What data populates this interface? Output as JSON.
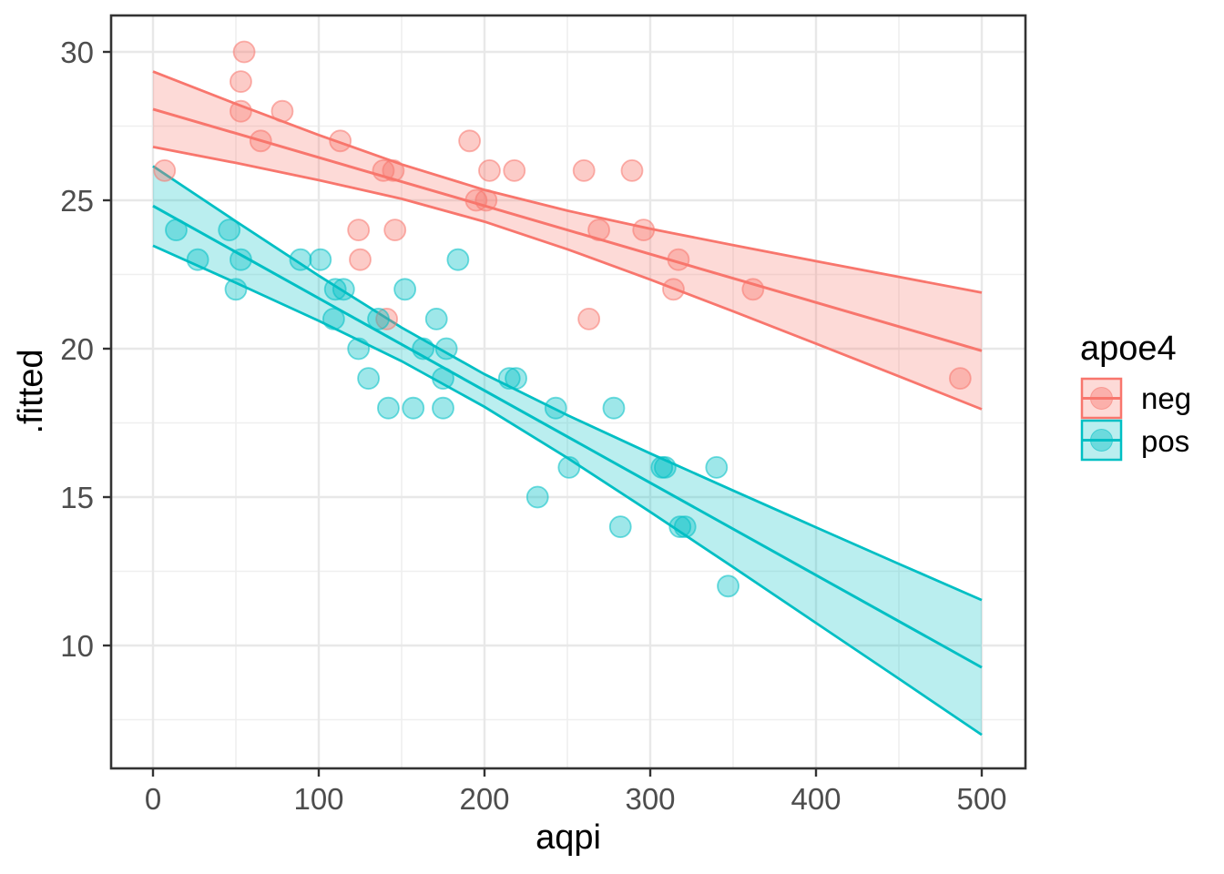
{
  "chart_data": {
    "type": "scatter",
    "title": "",
    "xlabel": "aqpi",
    "ylabel": ".fitted",
    "x_ticks": [
      0,
      100,
      200,
      300,
      400,
      500
    ],
    "y_ticks": [
      30,
      25,
      20,
      15,
      10
    ],
    "x_minor_gridlines": [
      50,
      150,
      250,
      350,
      450
    ],
    "y_minor_gridlines": [
      27.5,
      22.5,
      17.5,
      12.5,
      7.5
    ],
    "xlim": [
      -25,
      525
    ],
    "ylim": [
      5.9,
      31.2
    ],
    "grid": true,
    "panel_border_color": "#333333",
    "gridline_color": "#E8E8E8",
    "tick_text_color": "#4D4D4D",
    "legend": {
      "title": "apoe4",
      "position": "right",
      "entries": [
        {
          "label": "neg",
          "color": "#F8766D"
        },
        {
          "label": "pos",
          "color": "#00BFC4"
        }
      ]
    },
    "series": [
      {
        "name": "neg",
        "color": "#F8766D",
        "points": [
          [
            7,
            26
          ],
          [
            53,
            29
          ],
          [
            53,
            28
          ],
          [
            55,
            30
          ],
          [
            65,
            27
          ],
          [
            78,
            28
          ],
          [
            113,
            27
          ],
          [
            124,
            24
          ],
          [
            125,
            23
          ],
          [
            139,
            26
          ],
          [
            141,
            21
          ],
          [
            145,
            26
          ],
          [
            146,
            24
          ],
          [
            191,
            27
          ],
          [
            195,
            25
          ],
          [
            201,
            25
          ],
          [
            203,
            26
          ],
          [
            218,
            26
          ],
          [
            260,
            26
          ],
          [
            263,
            21
          ],
          [
            269,
            24
          ],
          [
            289,
            26
          ],
          [
            296,
            24
          ],
          [
            314,
            22
          ],
          [
            317,
            23
          ],
          [
            362,
            22
          ],
          [
            487,
            19
          ]
        ],
        "regression_line": {
          "x": [
            0,
            500
          ],
          "y": [
            28.07,
            19.93
          ]
        },
        "ci_ribbon": {
          "x": [
            0,
            50,
            100,
            150,
            200,
            250,
            300,
            350,
            400,
            450,
            500
          ],
          "upper": [
            29.34,
            28.25,
            27.2,
            26.21,
            25.35,
            24.65,
            24.04,
            23.49,
            22.95,
            22.42,
            21.89
          ],
          "lower": [
            26.8,
            26.26,
            25.68,
            25.05,
            24.28,
            23.35,
            22.33,
            21.26,
            20.17,
            19.07,
            17.96
          ]
        }
      },
      {
        "name": "pos",
        "color": "#00BFC4",
        "points": [
          [
            14,
            24
          ],
          [
            27,
            23
          ],
          [
            46,
            24
          ],
          [
            50,
            22
          ],
          [
            53,
            23
          ],
          [
            89,
            23
          ],
          [
            101,
            23
          ],
          [
            109,
            21
          ],
          [
            110,
            22
          ],
          [
            115,
            22
          ],
          [
            124,
            20
          ],
          [
            130,
            19
          ],
          [
            136,
            21
          ],
          [
            142,
            18
          ],
          [
            152,
            22
          ],
          [
            157,
            18
          ],
          [
            163,
            20
          ],
          [
            171,
            21
          ],
          [
            175,
            19
          ],
          [
            175,
            18
          ],
          [
            177,
            20
          ],
          [
            184,
            23
          ],
          [
            215,
            19
          ],
          [
            219,
            19
          ],
          [
            232,
            15
          ],
          [
            243,
            18
          ],
          [
            251,
            16
          ],
          [
            278,
            18
          ],
          [
            282,
            14
          ],
          [
            307,
            16
          ],
          [
            309,
            16
          ],
          [
            318,
            14
          ],
          [
            321,
            14
          ],
          [
            340,
            16
          ],
          [
            347,
            12
          ]
        ],
        "regression_line": {
          "x": [
            0,
            500
          ],
          "y": [
            24.81,
            9.26
          ]
        },
        "ci_ribbon": {
          "x": [
            0,
            50,
            100,
            150,
            200,
            250,
            300,
            350,
            400,
            450,
            500
          ],
          "upper": [
            26.15,
            24.29,
            22.46,
            20.71,
            19.14,
            17.76,
            16.47,
            15.22,
            13.98,
            12.75,
            11.53
          ],
          "lower": [
            23.47,
            22.22,
            20.94,
            19.58,
            18.04,
            16.32,
            14.5,
            12.64,
            10.76,
            8.88,
            6.99
          ]
        }
      }
    ]
  }
}
